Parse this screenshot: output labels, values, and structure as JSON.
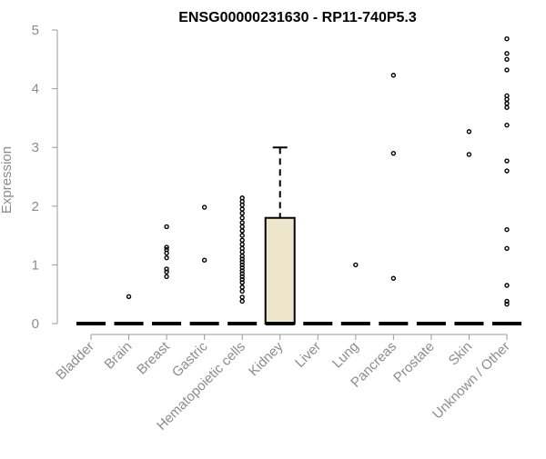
{
  "chart_data": {
    "type": "box",
    "title": "ENSG00000231630 - RP11-740P5.3",
    "ylabel": "Expression",
    "ylim": [
      0,
      5
    ],
    "yticks": [
      0,
      1,
      2,
      3,
      4,
      5
    ],
    "grid": false,
    "legend": "none",
    "colors": {
      "box_fill": "#ede6cc",
      "box_stroke": "#000000",
      "axis": "#999999",
      "tick_label": "#8c8c8c",
      "title": "#000000"
    },
    "categories": [
      "Bladder",
      "Brain",
      "Breast",
      "Gastric",
      "Hematopoietic cells",
      "Kidney",
      "Liver",
      "Lung",
      "Pancreas",
      "Prostate",
      "Skin",
      "Unknown / Other"
    ],
    "boxes": [
      {
        "category": "Bladder",
        "q1": 0,
        "median": 0,
        "q3": 0,
        "whisker_low": 0,
        "whisker_high": 0,
        "outliers": []
      },
      {
        "category": "Brain",
        "q1": 0,
        "median": 0,
        "q3": 0,
        "whisker_low": 0,
        "whisker_high": 0,
        "outliers": [
          0.46
        ]
      },
      {
        "category": "Breast",
        "q1": 0,
        "median": 0,
        "q3": 0,
        "whisker_low": 0,
        "whisker_high": 0,
        "outliers": [
          0.8,
          0.88,
          0.93,
          1.12,
          1.2,
          1.26,
          1.3,
          1.65
        ]
      },
      {
        "category": "Gastric",
        "q1": 0,
        "median": 0,
        "q3": 0,
        "whisker_low": 0,
        "whisker_high": 0,
        "outliers": [
          1.08,
          1.98
        ]
      },
      {
        "category": "Hematopoietic cells",
        "q1": 0,
        "median": 0,
        "q3": 0,
        "whisker_low": 0,
        "whisker_high": 0,
        "outliers": [
          0.38,
          0.45,
          0.55,
          0.62,
          0.7,
          0.75,
          0.8,
          0.85,
          0.9,
          0.95,
          1.0,
          1.05,
          1.1,
          1.15,
          1.22,
          1.28,
          1.35,
          1.42,
          1.5,
          1.58,
          1.65,
          1.72,
          1.8,
          1.88,
          1.95,
          2.02,
          2.08,
          2.14
        ]
      },
      {
        "category": "Kidney",
        "q1": 0,
        "median": 0,
        "q3": 1.8,
        "whisker_low": 0,
        "whisker_high": 3.0,
        "outliers": []
      },
      {
        "category": "Liver",
        "q1": 0,
        "median": 0,
        "q3": 0,
        "whisker_low": 0,
        "whisker_high": 0,
        "outliers": []
      },
      {
        "category": "Lung",
        "q1": 0,
        "median": 0,
        "q3": 0,
        "whisker_low": 0,
        "whisker_high": 0,
        "outliers": [
          1.0
        ]
      },
      {
        "category": "Pancreas",
        "q1": 0,
        "median": 0,
        "q3": 0,
        "whisker_low": 0,
        "whisker_high": 0,
        "outliers": [
          0.77,
          2.9,
          4.23
        ]
      },
      {
        "category": "Prostate",
        "q1": 0,
        "median": 0,
        "q3": 0,
        "whisker_low": 0,
        "whisker_high": 0,
        "outliers": []
      },
      {
        "category": "Skin",
        "q1": 0,
        "median": 0,
        "q3": 0,
        "whisker_low": 0,
        "whisker_high": 0,
        "outliers": [
          2.88,
          3.27
        ]
      },
      {
        "category": "Unknown / Other",
        "q1": 0,
        "median": 0,
        "q3": 0,
        "whisker_low": 0,
        "whisker_high": 0,
        "outliers": [
          0.33,
          0.38,
          0.65,
          1.28,
          1.6,
          2.6,
          2.77,
          3.38,
          3.68,
          3.75,
          3.82,
          3.88,
          4.32,
          4.5,
          4.6,
          4.85
        ]
      }
    ]
  }
}
